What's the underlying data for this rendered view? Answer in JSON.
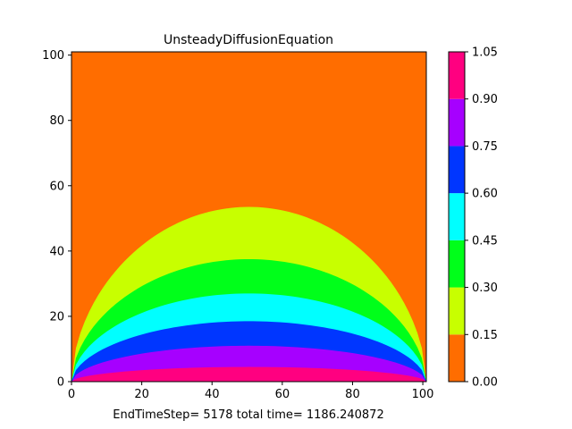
{
  "chart_data": {
    "type": "heatmap",
    "subtype": "filled-contour",
    "title": "UnsteadyDiffusionEquation",
    "xlabel": "EndTimeStep= 5178 total time= 1186.240872",
    "ylabel": "",
    "xlim": [
      0,
      101
    ],
    "ylim": [
      0,
      101
    ],
    "x_ticks": [
      0,
      20,
      40,
      60,
      80,
      100
    ],
    "y_ticks": [
      0,
      20,
      40,
      60,
      80,
      100
    ],
    "background_level_color": "#ff6d00",
    "contour_levels": [
      0.0,
      0.15,
      0.3,
      0.45,
      0.6,
      0.75,
      0.9,
      1.05
    ],
    "contour_colors": [
      "#ff6d00",
      "#c8ff00",
      "#00ff1a",
      "#00ffff",
      "#0036ff",
      "#a600ff",
      "#ff0080"
    ],
    "contour_boundaries": [
      {
        "level": 0.15,
        "x_left": 0,
        "x_right": 101,
        "peak_x": 50,
        "peak_y": 53.5
      },
      {
        "level": 0.3,
        "x_left": 0,
        "x_right": 101,
        "peak_x": 50,
        "peak_y": 37.5
      },
      {
        "level": 0.45,
        "x_left": 0,
        "x_right": 101,
        "peak_x": 50,
        "peak_y": 27
      },
      {
        "level": 0.6,
        "x_left": 0,
        "x_right": 101,
        "peak_x": 50,
        "peak_y": 18.5
      },
      {
        "level": 0.75,
        "x_left": 0,
        "x_right": 101,
        "peak_x": 50,
        "peak_y": 11
      },
      {
        "level": 0.9,
        "x_left": 0,
        "x_right": 101,
        "peak_x": 50,
        "peak_y": 4.5
      }
    ],
    "colorbar": {
      "tick_labels": [
        "0.00",
        "0.15",
        "0.30",
        "0.45",
        "0.60",
        "0.75",
        "0.90",
        "1.05"
      ]
    },
    "grid": false,
    "legend": "none"
  }
}
